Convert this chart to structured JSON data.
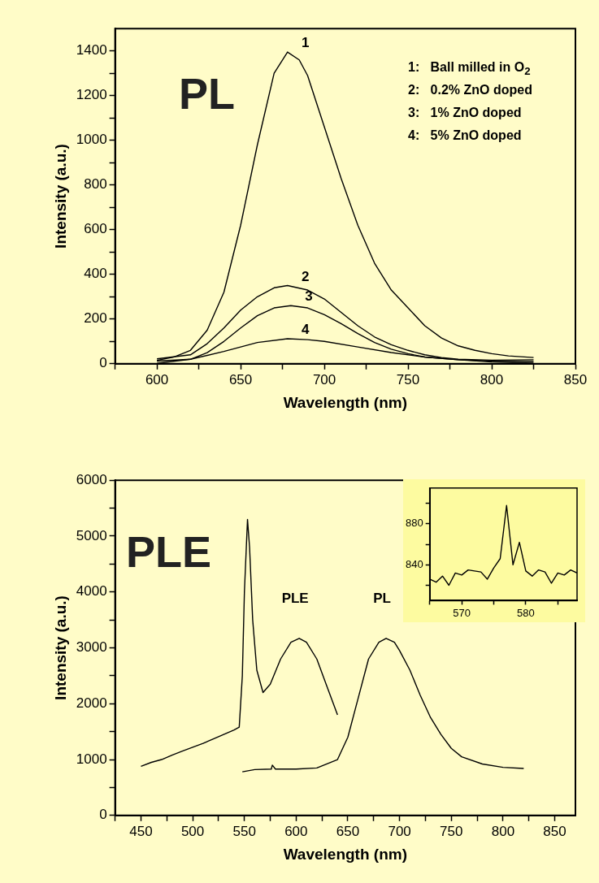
{
  "chart_data": [
    {
      "type": "line",
      "xlabel": "Wavelength (nm)",
      "ylabel": "Intensity (a.u.)",
      "xlim": [
        575,
        850
      ],
      "ylim": [
        0,
        1500
      ],
      "xticks": [
        {
          "value": 575,
          "label": null
        },
        600,
        {
          "value": 625,
          "label": null
        },
        650,
        {
          "value": 675,
          "label": null
        },
        700,
        {
          "value": 725,
          "label": null
        },
        750,
        {
          "value": 775,
          "label": null
        },
        800,
        {
          "value": 825,
          "label": null
        },
        850
      ],
      "yticks": [
        0,
        {
          "value": 100,
          "label": null
        },
        200,
        {
          "value": 300,
          "label": null
        },
        400,
        {
          "value": 500,
          "label": null
        },
        600,
        {
          "value": 700,
          "label": null
        },
        800,
        {
          "value": 900,
          "label": null
        },
        1000,
        {
          "value": 1100,
          "label": null
        },
        1200,
        {
          "value": 1300,
          "label": null
        },
        1400
      ],
      "annotations": [
        "PL",
        "1:   Ball milled in O$_{2}$",
        "2:   0.2% ZnO doped",
        "3:   1% ZnO doped",
        "4:   5% ZnO doped"
      ],
      "series": [
        {
          "name": "1",
          "color": "#000000",
          "x": [
            600,
            610,
            620,
            630,
            640,
            650,
            660,
            670,
            678,
            685,
            690,
            700,
            710,
            720,
            730,
            740,
            750,
            760,
            770,
            780,
            790,
            800,
            810,
            825
          ],
          "values": [
            15,
            30,
            60,
            150,
            320,
            620,
            980,
            1300,
            1395,
            1360,
            1290,
            1060,
            830,
            620,
            450,
            330,
            250,
            170,
            115,
            80,
            60,
            45,
            35,
            28
          ]
        },
        {
          "name": "2",
          "color": "#000000",
          "x": [
            600,
            620,
            630,
            640,
            650,
            660,
            670,
            678,
            690,
            700,
            710,
            720,
            730,
            740,
            750,
            760,
            770,
            780,
            800,
            825
          ],
          "values": [
            22,
            40,
            90,
            160,
            240,
            300,
            340,
            350,
            330,
            290,
            230,
            170,
            120,
            85,
            60,
            40,
            28,
            20,
            16,
            18
          ]
        },
        {
          "name": "3",
          "color": "#000000",
          "x": [
            600,
            620,
            630,
            640,
            650,
            660,
            670,
            680,
            690,
            700,
            710,
            720,
            730,
            740,
            750,
            760,
            780,
            800,
            825
          ],
          "values": [
            12,
            20,
            50,
            100,
            160,
            215,
            250,
            260,
            250,
            220,
            180,
            135,
            95,
            65,
            45,
            30,
            18,
            12,
            10
          ]
        },
        {
          "name": "4",
          "color": "#000000",
          "x": [
            600,
            620,
            640,
            660,
            678,
            690,
            700,
            720,
            740,
            760,
            780,
            800,
            825
          ],
          "values": [
            2,
            20,
            55,
            95,
            112,
            108,
            100,
            75,
            50,
            30,
            18,
            8,
            3
          ]
        }
      ]
    },
    {
      "type": "line",
      "xlabel": "Wavelength (nm)",
      "ylabel": "Intensity (a.u.)",
      "xlim": [
        425,
        870
      ],
      "ylim": [
        0,
        6000
      ],
      "xticks": [
        {
          "value": 425,
          "label": null
        },
        450,
        {
          "value": 475,
          "label": null
        },
        500,
        {
          "value": 525,
          "label": null
        },
        550,
        {
          "value": 575,
          "label": null
        },
        600,
        {
          "value": 625,
          "label": null
        },
        650,
        {
          "value": 675,
          "label": null
        },
        700,
        {
          "value": 725,
          "label": null
        },
        750,
        {
          "value": 775,
          "label": null
        },
        800,
        {
          "value": 825,
          "label": null
        },
        850
      ],
      "yticks": [
        0,
        {
          "value": 500,
          "label": null
        },
        1000,
        {
          "value": 1500,
          "label": null
        },
        2000,
        {
          "value": 2500,
          "label": null
        },
        3000,
        {
          "value": 3500,
          "label": null
        },
        4000,
        {
          "value": 4500,
          "label": null
        },
        5000,
        {
          "value": 5500,
          "label": null
        },
        6000
      ],
      "annotations": [
        "PLE"
      ],
      "series": [
        {
          "name": "PLE",
          "color": "#000000",
          "x": [
            450,
            460,
            470,
            480,
            490,
            500,
            510,
            520,
            530,
            540,
            545,
            548,
            550,
            553,
            555,
            558,
            562,
            568,
            575,
            585,
            595,
            603,
            610,
            620,
            630,
            640
          ],
          "values": [
            880,
            950,
            1000,
            1080,
            1150,
            1220,
            1290,
            1370,
            1450,
            1530,
            1580,
            2500,
            4000,
            5300,
            4800,
            3500,
            2600,
            2200,
            2350,
            2800,
            3100,
            3170,
            3100,
            2800,
            2300,
            1800
          ]
        },
        {
          "name": "PL",
          "color": "#000000",
          "x": [
            548,
            560,
            576,
            577,
            580,
            600,
            620,
            640,
            650,
            660,
            670,
            680,
            687,
            695,
            700,
            710,
            720,
            730,
            740,
            750,
            760,
            780,
            800,
            820
          ],
          "values": [
            780,
            820,
            830,
            900,
            830,
            830,
            850,
            1000,
            1400,
            2100,
            2800,
            3100,
            3170,
            3100,
            2950,
            2600,
            2150,
            1750,
            1450,
            1200,
            1050,
            920,
            860,
            840
          ]
        }
      ]
    },
    {
      "type": "line",
      "xlim": [
        565,
        588
      ],
      "ylim": [
        805,
        915
      ],
      "xticks": [
        {
          "value": 565,
          "label": null
        },
        570,
        {
          "value": 575,
          "label": null
        },
        580,
        {
          "value": 585,
          "label": null
        }
      ],
      "yticks": [
        {
          "value": 820,
          "label": null
        },
        840,
        {
          "value": 860,
          "label": null
        },
        880,
        {
          "value": 900,
          "label": null
        }
      ],
      "series": [
        {
          "color": "#000000",
          "x": [
            565,
            566,
            567,
            568,
            569,
            570,
            571,
            572,
            573,
            574,
            575,
            576,
            577,
            578,
            579,
            580,
            581,
            582,
            583,
            584,
            585,
            586,
            587,
            588
          ],
          "values": [
            826,
            823,
            829,
            820,
            832,
            830,
            835,
            834,
            833,
            826,
            837,
            846,
            898,
            840,
            862,
            834,
            829,
            835,
            833,
            822,
            832,
            830,
            835,
            832
          ]
        }
      ]
    }
  ]
}
